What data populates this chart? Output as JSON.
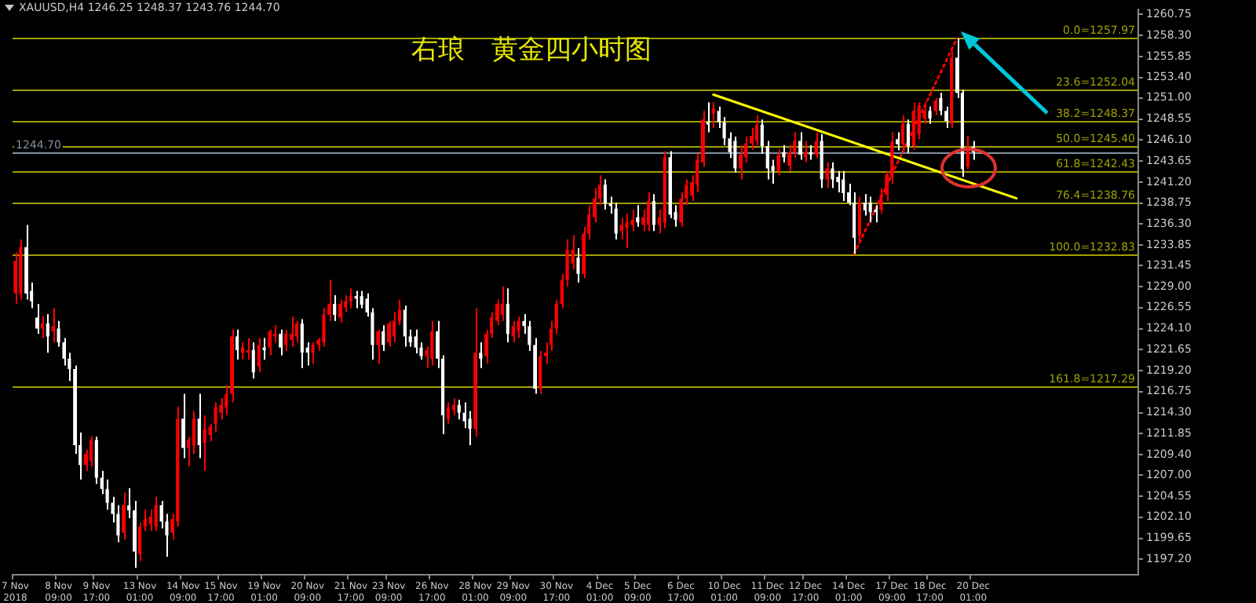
{
  "chart_data": {
    "type": "candlestick",
    "title": "右琅　黄金四小时图",
    "subtitle": "XAUUSD,H4  1246.25 1248.37 1243.76 1244.70",
    "categories": [
      "7 Nov 2018",
      null,
      null,
      null,
      null,
      null,
      null,
      null,
      "8 Nov 09:00",
      null,
      null,
      null,
      null,
      null,
      null,
      "9 Nov 17:00",
      null,
      null,
      null,
      null,
      null,
      null,
      null,
      "13 Nov 01:00",
      null,
      null,
      null,
      null,
      null,
      null,
      null,
      "14 Nov 09:00",
      null,
      null,
      null,
      null,
      null,
      null,
      "15 Nov 17:00",
      null,
      null,
      null,
      null,
      null,
      null,
      null,
      "19 Nov 01:00",
      null,
      null,
      null,
      null,
      null,
      null,
      null,
      "20 Nov 09:00",
      null,
      null,
      null,
      null,
      null,
      null,
      null,
      "21 Nov 17:00",
      null,
      null,
      null,
      null,
      null,
      null,
      "23 Nov 09:00",
      null,
      null,
      null,
      null,
      null,
      null,
      null,
      "26 Nov 17:00",
      null,
      null,
      null,
      null,
      null,
      null,
      null,
      "28 Nov 01:00",
      null,
      null,
      null,
      null,
      null,
      null,
      "29 Nov 09:00",
      null,
      null,
      null,
      null,
      null,
      null,
      null,
      "30 Nov 17:00",
      null,
      null,
      null,
      null,
      null,
      null,
      null,
      "4 Dec 01:00",
      null,
      null,
      null,
      null,
      null,
      null,
      "5 Dec 09:00",
      null,
      null,
      null,
      null,
      null,
      null,
      null,
      "6 Dec 17:00",
      null,
      null,
      null,
      null,
      null,
      null,
      null,
      "10 Dec 01:00",
      null,
      null,
      null,
      null,
      null,
      null,
      null,
      "11 Dec 09:00",
      null,
      null,
      null,
      null,
      null,
      null,
      "12 Dec 17:00",
      null,
      null,
      null,
      null,
      null,
      null,
      null,
      "14 Dec 01:00",
      null,
      null,
      null,
      null,
      null,
      null,
      null,
      "17 Dec 09:00",
      null,
      null,
      null,
      null,
      null,
      null,
      "18 Dec 17:00",
      null,
      null,
      null,
      null,
      null,
      null,
      null,
      "20 Dec 01:00",
      null,
      null,
      null,
      null,
      null,
      null,
      null,
      null,
      null,
      null,
      null,
      null,
      null,
      null,
      null,
      null,
      null,
      null,
      null,
      null,
      null,
      null,
      null,
      null,
      null,
      null,
      null,
      null,
      null,
      null
    ],
    "ohlc": [
      [
        1228.2,
        1233.0,
        1227.0,
        1232.0
      ],
      [
        1228.2,
        1234.5,
        1227.5,
        1233.6
      ],
      [
        1233.6,
        1236.2,
        1227.5,
        1228.2
      ],
      [
        1228.5,
        1229.5,
        1226.5,
        1227.3
      ],
      [
        1225.4,
        1227.0,
        1223.5,
        1224.1
      ],
      [
        1224.1,
        1225.6,
        1223.0,
        1224.7
      ],
      [
        1224.7,
        1225.8,
        1221.3,
        1223.2
      ],
      [
        1223.8,
        1226.5,
        1222.5,
        1224.4
      ],
      [
        1224.1,
        1225.0,
        1222.0,
        1222.5
      ],
      [
        1222.5,
        1223.0,
        1219.8,
        1220.6
      ],
      [
        1220.6,
        1221.3,
        1218.0,
        1219.4
      ],
      [
        1219.4,
        1219.8,
        1209.5,
        1210.5
      ],
      [
        1210.5,
        1212.0,
        1206.5,
        1208.2
      ],
      [
        1208.2,
        1210.0,
        1207.5,
        1209.5
      ],
      [
        1208.6,
        1211.5,
        1208.0,
        1211.1
      ],
      [
        1211.1,
        1211.5,
        1206.0,
        1206.7
      ],
      [
        1206.7,
        1207.5,
        1204.8,
        1205.4
      ],
      [
        1205.4,
        1206.5,
        1203.0,
        1203.8
      ],
      [
        1203.8,
        1204.5,
        1201.5,
        1202.5
      ],
      [
        1202.5,
        1203.5,
        1199.2,
        1200.0
      ],
      [
        1200.3,
        1205.0,
        1199.5,
        1203.5
      ],
      [
        1203.5,
        1205.5,
        1202.0,
        1202.9
      ],
      [
        1202.9,
        1204.0,
        1196.2,
        1198.1
      ],
      [
        1197.8,
        1201.5,
        1197.0,
        1201.0
      ],
      [
        1201.0,
        1203.0,
        1200.5,
        1201.9
      ],
      [
        1201.3,
        1203.0,
        1200.5,
        1202.2
      ],
      [
        1201.0,
        1204.5,
        1200.5,
        1203.5
      ],
      [
        1203.5,
        1204.0,
        1200.8,
        1201.6
      ],
      [
        1201.6,
        1202.5,
        1197.5,
        1200.0
      ],
      [
        1200.3,
        1202.5,
        1199.5,
        1201.9
      ],
      [
        1201.6,
        1215.0,
        1201.0,
        1213.6
      ],
      [
        1213.6,
        1216.5,
        1209.0,
        1210.2
      ],
      [
        1210.2,
        1211.5,
        1208.0,
        1211.1
      ],
      [
        1210.5,
        1214.5,
        1209.5,
        1213.6
      ],
      [
        1213.6,
        1216.5,
        1209.0,
        1210.5
      ],
      [
        1210.8,
        1214.0,
        1207.5,
        1212.4
      ],
      [
        1211.7,
        1213.0,
        1211.0,
        1212.7
      ],
      [
        1213.0,
        1215.5,
        1212.0,
        1214.9
      ],
      [
        1214.3,
        1216.0,
        1213.5,
        1215.2
      ],
      [
        1214.9,
        1217.5,
        1214.0,
        1216.5
      ],
      [
        1216.5,
        1224.0,
        1215.5,
        1223.2
      ],
      [
        1223.2,
        1224.0,
        1220.5,
        1221.6
      ],
      [
        1221.3,
        1222.5,
        1220.5,
        1221.9
      ],
      [
        1221.3,
        1223.0,
        1220.5,
        1221.6
      ],
      [
        1221.6,
        1222.5,
        1218.3,
        1219.0
      ],
      [
        1219.7,
        1223.0,
        1219.0,
        1222.2
      ],
      [
        1221.9,
        1223.0,
        1220.5,
        1221.6
      ],
      [
        1221.9,
        1224.0,
        1221.0,
        1223.8
      ],
      [
        1223.2,
        1224.5,
        1222.5,
        1223.5
      ],
      [
        1223.5,
        1224.0,
        1221.0,
        1221.9
      ],
      [
        1222.2,
        1224.0,
        1221.5,
        1223.5
      ],
      [
        1222.8,
        1225.5,
        1222.0,
        1223.5
      ],
      [
        1223.2,
        1225.0,
        1222.5,
        1224.7
      ],
      [
        1224.7,
        1225.2,
        1219.5,
        1221.3
      ],
      [
        1221.9,
        1222.5,
        1219.8,
        1221.3
      ],
      [
        1221.3,
        1222.5,
        1220.0,
        1222.2
      ],
      [
        1222.2,
        1223.0,
        1221.5,
        1222.8
      ],
      [
        1222.5,
        1226.5,
        1222.0,
        1225.7
      ],
      [
        1225.7,
        1229.8,
        1225.0,
        1227.0
      ],
      [
        1227.0,
        1228.0,
        1225.0,
        1225.7
      ],
      [
        1225.4,
        1227.5,
        1224.8,
        1227.0
      ],
      [
        1226.6,
        1228.0,
        1226.0,
        1227.3
      ],
      [
        1227.3,
        1228.8,
        1226.5,
        1227.9
      ],
      [
        1227.9,
        1228.5,
        1226.5,
        1227.6
      ],
      [
        1227.9,
        1228.5,
        1226.5,
        1226.9
      ],
      [
        1227.6,
        1228.2,
        1225.5,
        1226.0
      ],
      [
        1226.0,
        1226.5,
        1220.5,
        1222.2
      ],
      [
        1222.2,
        1224.0,
        1220.0,
        1223.8
      ],
      [
        1223.8,
        1224.5,
        1221.5,
        1222.2
      ],
      [
        1222.5,
        1225.0,
        1222.0,
        1224.7
      ],
      [
        1223.2,
        1226.0,
        1222.5,
        1225.0
      ],
      [
        1225.0,
        1227.5,
        1224.5,
        1226.3
      ],
      [
        1226.3,
        1226.8,
        1222.0,
        1223.2
      ],
      [
        1223.2,
        1224.0,
        1222.0,
        1222.5
      ],
      [
        1223.2,
        1224.0,
        1221.2,
        1221.9
      ],
      [
        1221.9,
        1222.5,
        1220.5,
        1220.9
      ],
      [
        1220.9,
        1222.0,
        1219.5,
        1221.6
      ],
      [
        1220.6,
        1225.0,
        1219.8,
        1223.8
      ],
      [
        1223.8,
        1225.0,
        1219.5,
        1220.6
      ],
      [
        1220.6,
        1221.0,
        1211.8,
        1214.0
      ],
      [
        1213.6,
        1215.5,
        1213.0,
        1214.9
      ],
      [
        1214.6,
        1216.0,
        1214.0,
        1215.2
      ],
      [
        1215.2,
        1215.8,
        1213.5,
        1214.3
      ],
      [
        1214.3,
        1215.5,
        1212.5,
        1213.3
      ],
      [
        1213.6,
        1214.5,
        1210.5,
        1212.4
      ],
      [
        1212.4,
        1226.5,
        1211.5,
        1221.3
      ],
      [
        1221.3,
        1222.5,
        1219.5,
        1220.6
      ],
      [
        1220.9,
        1224.0,
        1220.0,
        1223.5
      ],
      [
        1223.5,
        1226.0,
        1223.0,
        1225.4
      ],
      [
        1225.0,
        1227.5,
        1224.5,
        1227.0
      ],
      [
        1225.7,
        1229.0,
        1225.0,
        1227.0
      ],
      [
        1227.0,
        1228.8,
        1222.5,
        1223.5
      ],
      [
        1223.2,
        1225.0,
        1222.5,
        1224.4
      ],
      [
        1223.8,
        1225.5,
        1223.0,
        1225.0
      ],
      [
        1225.0,
        1225.8,
        1223.5,
        1224.4
      ],
      [
        1224.4,
        1225.0,
        1221.5,
        1222.2
      ],
      [
        1222.2,
        1223.0,
        1216.5,
        1217.1
      ],
      [
        1217.1,
        1221.5,
        1216.5,
        1220.9
      ],
      [
        1220.9,
        1222.5,
        1220.0,
        1221.3
      ],
      [
        1222.2,
        1225.0,
        1221.5,
        1224.1
      ],
      [
        1224.1,
        1227.5,
        1223.5,
        1227.0
      ],
      [
        1227.0,
        1230.5,
        1226.5,
        1229.8
      ],
      [
        1229.8,
        1234.5,
        1229.0,
        1233.3
      ],
      [
        1231.7,
        1235.0,
        1231.0,
        1233.3
      ],
      [
        1232.4,
        1233.5,
        1229.5,
        1230.5
      ],
      [
        1230.5,
        1236.0,
        1230.0,
        1235.2
      ],
      [
        1235.2,
        1238.5,
        1234.5,
        1237.4
      ],
      [
        1237.1,
        1240.5,
        1236.5,
        1239.3
      ],
      [
        1239.3,
        1242.0,
        1238.5,
        1240.9
      ],
      [
        1240.9,
        1241.5,
        1238.0,
        1238.7
      ],
      [
        1238.7,
        1239.5,
        1237.5,
        1238.4
      ],
      [
        1238.1,
        1238.8,
        1234.5,
        1235.2
      ],
      [
        1235.5,
        1237.0,
        1234.5,
        1236.2
      ],
      [
        1235.9,
        1237.5,
        1233.5,
        1236.5
      ],
      [
        1236.2,
        1238.0,
        1235.5,
        1236.8
      ],
      [
        1237.1,
        1238.5,
        1236.0,
        1236.5
      ],
      [
        1236.2,
        1238.0,
        1235.5,
        1237.1
      ],
      [
        1236.2,
        1240.0,
        1235.5,
        1239.0
      ],
      [
        1239.0,
        1239.8,
        1235.5,
        1236.2
      ],
      [
        1236.2,
        1238.0,
        1235.2,
        1237.1
      ],
      [
        1236.5,
        1244.8,
        1235.8,
        1244.1
      ],
      [
        1244.1,
        1244.8,
        1237.0,
        1237.4
      ],
      [
        1237.7,
        1238.5,
        1236.0,
        1236.8
      ],
      [
        1236.5,
        1240.0,
        1236.0,
        1239.3
      ],
      [
        1239.3,
        1241.5,
        1238.5,
        1240.9
      ],
      [
        1239.6,
        1242.0,
        1239.0,
        1241.2
      ],
      [
        1240.9,
        1244.5,
        1240.0,
        1243.8
      ],
      [
        1243.5,
        1249.5,
        1243.0,
        1248.5
      ],
      [
        1248.2,
        1250.5,
        1247.0,
        1247.9
      ],
      [
        1249.2,
        1250.5,
        1247.5,
        1249.8
      ],
      [
        1249.5,
        1250.0,
        1247.5,
        1248.2
      ],
      [
        1248.2,
        1248.8,
        1245.5,
        1246.3
      ],
      [
        1246.3,
        1247.0,
        1244.0,
        1244.7
      ],
      [
        1246.0,
        1246.5,
        1242.3,
        1242.8
      ],
      [
        1242.8,
        1245.5,
        1241.5,
        1244.4
      ],
      [
        1244.1,
        1246.5,
        1243.5,
        1245.7
      ],
      [
        1245.7,
        1247.5,
        1245.0,
        1246.6
      ],
      [
        1246.0,
        1249.0,
        1245.5,
        1247.9
      ],
      [
        1247.9,
        1248.5,
        1244.5,
        1245.4
      ],
      [
        1245.4,
        1246.0,
        1241.5,
        1242.8
      ],
      [
        1243.1,
        1243.8,
        1241.0,
        1242.5
      ],
      [
        1242.5,
        1245.0,
        1242.0,
        1244.4
      ],
      [
        1244.7,
        1245.5,
        1243.5,
        1244.1
      ],
      [
        1243.1,
        1245.5,
        1242.5,
        1244.7
      ],
      [
        1244.7,
        1247.0,
        1244.0,
        1246.0
      ],
      [
        1246.0,
        1247.0,
        1243.8,
        1244.4
      ],
      [
        1244.1,
        1246.0,
        1243.5,
        1244.7
      ],
      [
        1244.7,
        1245.5,
        1243.8,
        1244.4
      ],
      [
        1244.4,
        1247.0,
        1244.0,
        1246.0
      ],
      [
        1246.0,
        1246.8,
        1240.5,
        1241.5
      ],
      [
        1241.5,
        1243.5,
        1240.5,
        1242.8
      ],
      [
        1242.8,
        1243.5,
        1240.5,
        1241.5
      ],
      [
        1241.8,
        1242.5,
        1240.0,
        1241.2
      ],
      [
        1241.5,
        1242.5,
        1239.0,
        1239.9
      ],
      [
        1240.0,
        1241.0,
        1238.5,
        1238.8
      ],
      [
        1238.8,
        1240.0,
        1232.83,
        1234.7
      ],
      [
        1235.0,
        1239.5,
        1234.0,
        1238.8
      ],
      [
        1238.8,
        1239.8,
        1237.3,
        1237.9
      ],
      [
        1238.8,
        1239.5,
        1236.5,
        1237.7
      ],
      [
        1238.0,
        1238.5,
        1236.5,
        1237.7
      ],
      [
        1238.0,
        1240.5,
        1237.5,
        1239.7
      ],
      [
        1239.7,
        1242.5,
        1239.0,
        1242.1
      ],
      [
        1241.8,
        1247.0,
        1241.0,
        1245.9
      ],
      [
        1246.2,
        1247.0,
        1244.9,
        1245.6
      ],
      [
        1245.6,
        1249.0,
        1245.0,
        1248.0
      ],
      [
        1248.0,
        1248.5,
        1244.6,
        1245.4
      ],
      [
        1245.4,
        1250.5,
        1245.0,
        1249.5
      ],
      [
        1246.8,
        1250.5,
        1246.2,
        1250.1
      ],
      [
        1248.6,
        1250.5,
        1248.0,
        1249.5
      ],
      [
        1249.5,
        1250.0,
        1248.0,
        1248.6
      ],
      [
        1249.5,
        1251.0,
        1249.0,
        1250.7
      ],
      [
        1251.0,
        1251.6,
        1249.0,
        1249.5
      ],
      [
        1249.5,
        1250.0,
        1247.5,
        1248.3
      ],
      [
        1248.0,
        1256.5,
        1247.5,
        1255.7
      ],
      [
        1255.7,
        1257.97,
        1251.0,
        1251.6
      ],
      [
        1251.6,
        1252.0,
        1241.8,
        1242.7
      ],
      [
        1243.0,
        1246.6,
        1242.7,
        1245.3
      ],
      [
        1245.3,
        1246.0,
        1243.8,
        1244.7
      ],
      null,
      null,
      null,
      null,
      null,
      null,
      null,
      null,
      null,
      null,
      null,
      null,
      null,
      null,
      null,
      null,
      null,
      null,
      null,
      null,
      null,
      null,
      null,
      null,
      null,
      null,
      null,
      null,
      null,
      null
    ],
    "colors": [
      "#ff0000",
      "#ff0000",
      "#ffffff",
      "#ffffff",
      "#ffffff",
      "#ff0000",
      "#ffffff",
      "#ff0000",
      "#ffffff",
      "#ffffff",
      "#ffffff",
      "#ffffff",
      "#ffffff",
      "#ff0000",
      "#ff0000",
      "#ffffff",
      "#ffffff",
      "#ffffff",
      "#ffffff",
      "#ffffff",
      "#ff0000",
      "#ffffff",
      "#ffffff",
      "#ff0000",
      "#ff0000",
      "#ff0000",
      "#ff0000",
      "#ffffff",
      "#ffffff",
      "#ff0000",
      "#ff0000",
      "#ffffff",
      "#ff0000",
      "#ff0000",
      "#ffffff",
      "#ff0000",
      "#ff0000",
      "#ff0000",
      "#ff0000",
      "#ff0000",
      "#ff0000",
      "#ffffff",
      "#ff0000",
      "#ff0000",
      "#ffffff",
      "#ff0000",
      "#ffffff",
      "#ff0000",
      "#ff0000",
      "#ffffff",
      "#ff0000",
      "#ff0000",
      "#ff0000",
      "#ffffff",
      "#ffffff",
      "#ff0000",
      "#ff0000",
      "#ff0000",
      "#ff0000",
      "#ffffff",
      "#ff0000",
      "#ff0000",
      "#ff0000",
      "#ffffff",
      "#ffffff",
      "#ffffff",
      "#ffffff",
      "#ff0000",
      "#ffffff",
      "#ff0000",
      "#ff0000",
      "#ff0000",
      "#ffffff",
      "#ffffff",
      "#ffffff",
      "#ffffff",
      "#ff0000",
      "#ff0000",
      "#ffffff",
      "#ffffff",
      "#ff0000",
      "#ff0000",
      "#ffffff",
      "#ffffff",
      "#ffffff",
      "#ff0000",
      "#ffffff",
      "#ff0000",
      "#ff0000",
      "#ff0000",
      "#ff0000",
      "#ffffff",
      "#ff0000",
      "#ff0000",
      "#ffffff",
      "#ffffff",
      "#ffffff",
      "#ff0000",
      "#ff0000",
      "#ff0000",
      "#ff0000",
      "#ff0000",
      "#ff0000",
      "#ff0000",
      "#ffffff",
      "#ff0000",
      "#ff0000",
      "#ff0000",
      "#ff0000",
      "#ffffff",
      "#ffffff",
      "#ffffff",
      "#ff0000",
      "#ff0000",
      "#ff0000",
      "#ffffff",
      "#ff0000",
      "#ff0000",
      "#ffffff",
      "#ff0000",
      "#ff0000",
      "#ffffff",
      "#ffffff",
      "#ff0000",
      "#ff0000",
      "#ff0000",
      "#ff0000",
      "#ff0000",
      "#ffffff",
      "#ff0000",
      "#ffffff",
      "#ffffff",
      "#ffffff",
      "#ffffff",
      "#ff0000",
      "#ff0000",
      "#ff0000",
      "#ff0000",
      "#ffffff",
      "#ffffff",
      "#ffffff",
      "#ff0000",
      "#ffffff",
      "#ff0000",
      "#ff0000",
      "#ffffff",
      "#ff0000",
      "#ffffff",
      "#ff0000",
      "#ffffff",
      "#ff0000",
      "#ffffff",
      "#ffffff",
      "#ffffff",
      "#ffffff",
      "#ffffff",
      "#ff0000",
      "#ffffff",
      "#ffffff",
      "#ffffff",
      "#ff0000",
      "#ff0000",
      "#ff0000",
      "#ffffff",
      "#ff0000",
      "#ffffff",
      "#ff0000",
      "#ff0000",
      "#ff0000",
      "#ffffff",
      "#ff0000",
      "#ffffff",
      "#ffffff",
      "#ff0000",
      "#ffffff",
      "#ffffff",
      "#ff0000",
      "#ffffff",
      null,
      null,
      null,
      null,
      null,
      null,
      null,
      null,
      null,
      null,
      null,
      null,
      null,
      null,
      null,
      null,
      null,
      null,
      null,
      null,
      null,
      null,
      null,
      null,
      null,
      null,
      null,
      null,
      null,
      null
    ],
    "series": [
      {
        "type": "line",
        "color": "#ffff00",
        "line_style": "solid",
        "values": [
          null,
          null,
          null,
          null,
          null,
          null,
          null,
          null,
          null,
          null,
          null,
          null,
          null,
          null,
          null,
          null,
          null,
          null,
          null,
          null,
          null,
          null,
          null,
          null,
          null,
          null,
          null,
          null,
          null,
          null,
          null,
          null,
          null,
          null,
          null,
          null,
          null,
          null,
          null,
          null,
          null,
          null,
          null,
          null,
          null,
          null,
          null,
          null,
          null,
          null,
          null,
          null,
          null,
          null,
          null,
          null,
          null,
          null,
          null,
          null,
          null,
          null,
          null,
          null,
          null,
          null,
          null,
          null,
          null,
          null,
          null,
          null,
          null,
          null,
          null,
          null,
          null,
          null,
          null,
          null,
          null,
          null,
          null,
          null,
          null,
          null,
          null,
          null,
          null,
          null,
          null,
          null,
          null,
          null,
          null,
          null,
          null,
          null,
          null,
          null,
          null,
          null,
          null,
          null,
          null,
          null,
          null,
          null,
          null,
          null,
          null,
          null,
          null,
          null,
          null,
          null,
          null,
          null,
          null,
          null,
          null,
          null,
          null,
          null,
          null,
          null,
          null,
          null,
          null,
          1251.4,
          null,
          null,
          null,
          null,
          null,
          null,
          null,
          null,
          null,
          null,
          null,
          null,
          null,
          null,
          null,
          null,
          null,
          null,
          null,
          null,
          null,
          null,
          null,
          null,
          null,
          null,
          null,
          null,
          null,
          null,
          null,
          null,
          null,
          null,
          null,
          null,
          null,
          null,
          null,
          null,
          null,
          null,
          null,
          null,
          null,
          null,
          null,
          null,
          null,
          null,
          null,
          null,
          null,
          null,
          null,
          1239.3,
          null,
          null,
          null,
          null,
          null,
          null,
          null,
          null,
          null,
          null,
          null,
          null,
          null,
          null,
          null,
          null,
          null,
          null,
          null,
          null,
          null,
          null
        ]
      },
      {
        "type": "line",
        "color": "#ff0000",
        "line_style": "dotted",
        "values": [
          null,
          null,
          null,
          null,
          null,
          null,
          null,
          null,
          null,
          null,
          null,
          null,
          null,
          null,
          null,
          null,
          null,
          null,
          null,
          null,
          null,
          null,
          null,
          null,
          null,
          null,
          null,
          null,
          null,
          null,
          null,
          null,
          null,
          null,
          null,
          null,
          null,
          null,
          null,
          null,
          null,
          null,
          null,
          null,
          null,
          null,
          null,
          null,
          null,
          null,
          null,
          null,
          null,
          null,
          null,
          null,
          null,
          null,
          null,
          null,
          null,
          null,
          null,
          null,
          null,
          null,
          null,
          null,
          null,
          null,
          null,
          null,
          null,
          null,
          null,
          null,
          null,
          null,
          null,
          null,
          null,
          null,
          null,
          null,
          null,
          null,
          null,
          null,
          null,
          null,
          null,
          null,
          null,
          null,
          null,
          null,
          null,
          null,
          null,
          null,
          null,
          null,
          null,
          null,
          null,
          null,
          null,
          null,
          null,
          null,
          null,
          null,
          null,
          null,
          null,
          null,
          null,
          null,
          null,
          null,
          null,
          null,
          null,
          null,
          null,
          null,
          null,
          null,
          null,
          null,
          null,
          null,
          null,
          null,
          null,
          null,
          null,
          null,
          null,
          null,
          null,
          null,
          null,
          null,
          null,
          null,
          null,
          null,
          null,
          null,
          null,
          null,
          null,
          null,
          null,
          1232.83,
          null,
          null,
          null,
          null,
          null,
          null,
          null,
          null,
          null,
          null,
          null,
          null,
          null,
          null,
          null,
          null,
          null,
          null,
          1257.97,
          null,
          null,
          null,
          null,
          null,
          null,
          null,
          null,
          null,
          null,
          null,
          null,
          null,
          null,
          null,
          null,
          null,
          null,
          null,
          null,
          null,
          null,
          null,
          null,
          null,
          null,
          null,
          null,
          null,
          null,
          null,
          null,
          null
        ]
      }
    ],
    "ref_lines": [
      {
        "axis": "y",
        "value": 1257.97,
        "label": "0.0=1257.97",
        "color": "#a0a000"
      },
      {
        "axis": "y",
        "value": 1252.04,
        "label": "23.6=1252.04",
        "color": "#a0a000"
      },
      {
        "axis": "y",
        "value": 1248.37,
        "label": "38.2=1248.37",
        "color": "#a0a000"
      },
      {
        "axis": "y",
        "value": 1245.4,
        "label": "50.0=1245.40",
        "color": "#a0a000"
      },
      {
        "axis": "y",
        "value": 1244.7,
        "label": "1244.70",
        "color": "#8090a0"
      },
      {
        "axis": "y",
        "value": 1242.43,
        "label": "61.8=1242.43",
        "color": "#a0a000"
      },
      {
        "axis": "y",
        "value": 1238.76,
        "label": "76.4=1238.76",
        "color": "#a0a000"
      },
      {
        "axis": "y",
        "value": 1232.83,
        "label": "100.0=1232.83",
        "color": "#a0a000"
      },
      {
        "axis": "y",
        "value": 1217.29,
        "label": "161.8=1217.29",
        "color": "#a0a000"
      }
    ],
    "ylim": [
      1195.4,
      1261.3
    ],
    "yticks": [
      {
        "value": 1260.75,
        "label": "1260.75"
      },
      {
        "value": 1258.3,
        "label": "1258.30"
      },
      {
        "value": 1255.85,
        "label": "1255.85"
      },
      {
        "value": 1253.4,
        "label": "1253.40"
      },
      {
        "value": 1251,
        "label": "1251.00"
      },
      {
        "value": 1248.55,
        "label": "1248.55"
      },
      {
        "value": 1246.1,
        "label": "1246.10"
      },
      {
        "value": 1243.65,
        "label": "1243.65"
      },
      {
        "value": 1241.2,
        "label": "1241.20"
      },
      {
        "value": 1238.75,
        "label": "1238.75"
      },
      {
        "value": 1236.3,
        "label": "1236.30"
      },
      {
        "value": 1233.85,
        "label": "1233.85"
      },
      {
        "value": 1231.45,
        "label": "1231.45"
      },
      {
        "value": 1229,
        "label": "1229.00"
      },
      {
        "value": 1226.55,
        "label": "1226.55"
      },
      {
        "value": 1224.1,
        "label": "1224.10"
      },
      {
        "value": 1221.65,
        "label": "1221.65"
      },
      {
        "value": 1219.2,
        "label": "1219.20"
      },
      {
        "value": 1216.75,
        "label": "1216.75"
      },
      {
        "value": 1214.3,
        "label": "1214.30"
      },
      {
        "value": 1211.85,
        "label": "1211.85"
      },
      {
        "value": 1209.4,
        "label": "1209.40"
      },
      {
        "value": 1207,
        "label": "1207.00"
      },
      {
        "value": 1204.55,
        "label": "1204.55"
      },
      {
        "value": 1202.1,
        "label": "1202.10"
      },
      {
        "value": 1199.65,
        "label": "1199.65"
      },
      {
        "value": 1197.2,
        "label": "1197.20"
      }
    ],
    "legend": false,
    "marker": "none"
  }
}
